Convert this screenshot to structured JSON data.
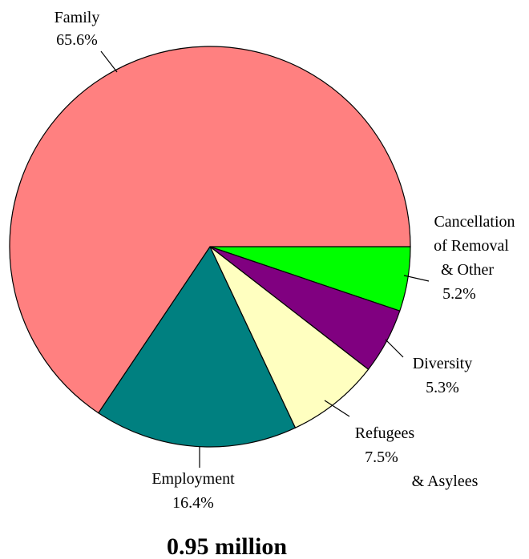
{
  "chart_data": {
    "type": "pie",
    "total_label": "0.95 million",
    "slices": [
      {
        "label_lines": [
          "Cancellation",
          "of Removal",
          "& Other"
        ],
        "value_label": "5.2%",
        "value": 5.2,
        "color": "#00FF00"
      },
      {
        "label_lines": [
          "Diversity"
        ],
        "value_label": "5.3%",
        "value": 5.3,
        "color": "#800080"
      },
      {
        "label_lines": [
          "Refugees"
        ],
        "value_label": "7.5%",
        "extra_line": "& Asylees",
        "value": 7.5,
        "color": "#FFFFC0"
      },
      {
        "label_lines": [
          "Employment"
        ],
        "value_label": "16.4%",
        "value": 16.4,
        "color": "#008080"
      },
      {
        "label_lines": [
          "Family"
        ],
        "value_label": "65.6%",
        "value": 65.6,
        "color": "#FF8080"
      }
    ],
    "start_angle_deg": 0,
    "direction": "clockwise",
    "legend": "none"
  }
}
